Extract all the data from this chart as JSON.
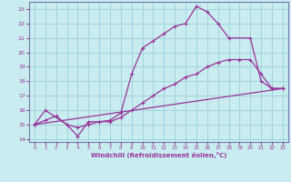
{
  "background_color": "#c8ecf0",
  "grid_color": "#9dd0da",
  "line_color": "#993399",
  "spine_color": "#7777aa",
  "xlim": [
    -0.5,
    23.5
  ],
  "ylim": [
    13.8,
    23.5
  ],
  "xlabel": "Windchill (Refroidissement éolien,°C)",
  "xticks": [
    0,
    1,
    2,
    3,
    4,
    5,
    6,
    7,
    8,
    9,
    10,
    11,
    12,
    13,
    14,
    15,
    16,
    17,
    18,
    19,
    20,
    21,
    22,
    23
  ],
  "yticks": [
    14,
    15,
    16,
    17,
    18,
    19,
    20,
    21,
    22,
    23
  ],
  "line1_x": [
    0,
    1,
    3,
    4,
    5,
    6,
    7,
    8,
    9,
    10,
    11,
    12,
    13,
    14,
    15,
    16,
    17,
    18,
    20,
    21,
    22,
    23
  ],
  "line1_y": [
    15.0,
    16.0,
    15.0,
    14.2,
    15.2,
    15.2,
    15.3,
    15.8,
    18.5,
    20.3,
    20.8,
    21.3,
    21.8,
    22.0,
    23.2,
    22.8,
    22.0,
    21.0,
    21.0,
    18.0,
    17.5,
    17.5
  ],
  "line2_x": [
    0,
    1,
    2,
    3,
    4,
    5,
    6,
    7,
    8,
    9,
    10,
    11,
    12,
    13,
    14,
    15,
    16,
    17,
    18,
    19,
    20,
    21,
    22,
    23
  ],
  "line2_y": [
    15.0,
    15.3,
    15.6,
    15.0,
    14.8,
    15.0,
    15.2,
    15.2,
    15.5,
    16.0,
    16.5,
    17.0,
    17.5,
    17.8,
    18.3,
    18.5,
    19.0,
    19.3,
    19.5,
    19.5,
    19.5,
    18.5,
    17.5,
    17.5
  ],
  "line3_x": [
    0,
    23
  ],
  "line3_y": [
    15.0,
    17.5
  ]
}
